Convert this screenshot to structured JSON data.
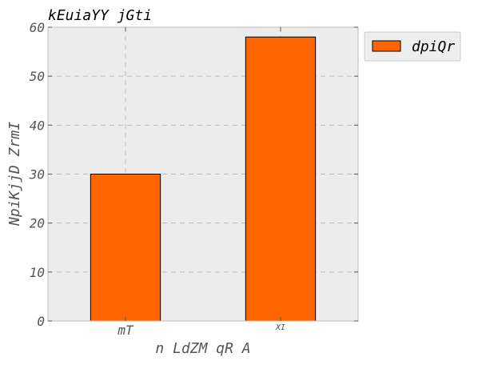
{
  "chart_data": {
    "type": "bar",
    "title": "kEuiaYY  jGti",
    "xlabel": "n LdZM qR  A",
    "ylabel": "NpiKjjD ZrmI",
    "categories": [
      "mT",
      "XI"
    ],
    "series": [
      {
        "name": "dpiQr",
        "values": [
          30,
          58
        ],
        "color": "#ff6600"
      }
    ],
    "ylim": [
      0,
      60
    ],
    "yticks": [
      0,
      10,
      20,
      30,
      40,
      50,
      60
    ],
    "grid": true,
    "legend_position": "outside-right-top",
    "plot_background": "#ececec"
  }
}
